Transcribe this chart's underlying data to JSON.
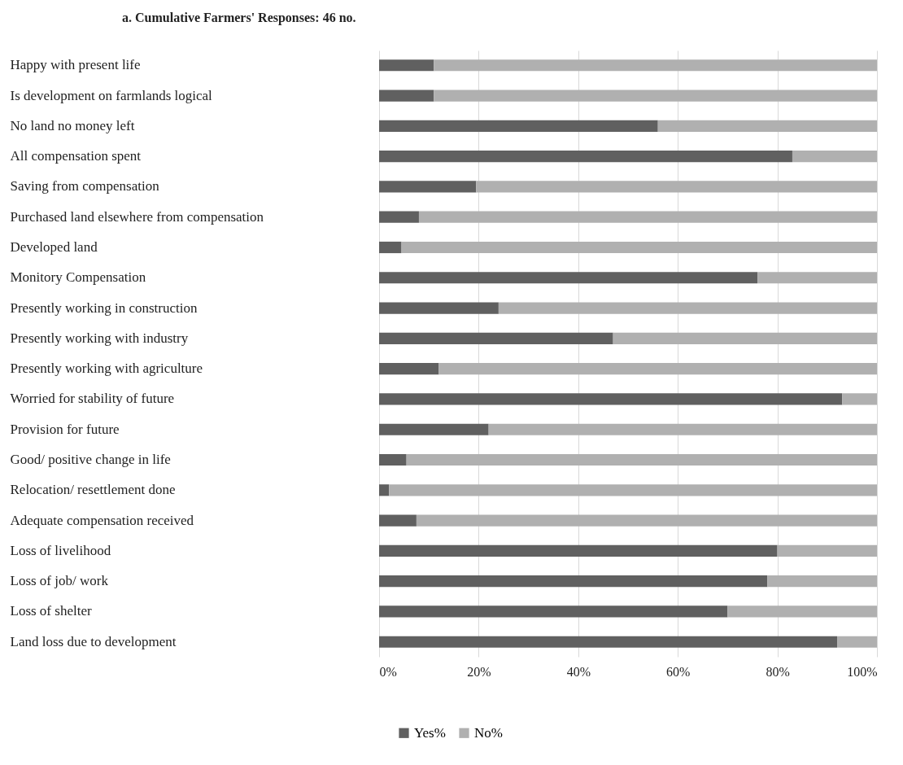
{
  "chart_data": {
    "type": "bar",
    "orientation": "horizontal",
    "stacked": true,
    "title": "a. Cumulative Farmers' Responses: 46 no.",
    "categories": [
      "Happy with present life",
      "Is development on farmlands logical",
      "No land no money left",
      "All compensation spent",
      "Saving from compensation",
      "Purchased land elsewhere from compensation",
      "Developed land",
      "Monitory Compensation",
      "Presently working in construction",
      "Presently working with industry",
      "Presently working with agriculture",
      "Worried for stability of future",
      "Provision for future",
      "Good/ positive change in life",
      "Relocation/ resettlement done",
      "Adequate compensation received",
      "Loss of livelihood",
      "Loss of job/ work",
      "Loss of shelter",
      "Land loss due to development"
    ],
    "series": [
      {
        "name": "Yes%",
        "color": "#606060",
        "values": [
          11,
          11,
          56,
          83,
          19.5,
          8,
          4.5,
          76,
          24,
          47,
          12,
          93,
          22,
          5.5,
          2,
          7.5,
          80,
          78,
          70,
          92
        ]
      },
      {
        "name": "No%",
        "color": "#b0b0b0",
        "values": [
          89,
          89,
          44,
          17,
          80.5,
          92,
          95.5,
          24,
          76,
          53,
          88,
          7,
          78,
          94.5,
          98,
          92.5,
          20,
          22,
          30,
          8
        ]
      }
    ],
    "xlim": [
      0,
      100
    ],
    "xticks": [
      {
        "value": 0,
        "label": "0%"
      },
      {
        "value": 20,
        "label": "20%"
      },
      {
        "value": 40,
        "label": "40%"
      },
      {
        "value": 60,
        "label": "60%"
      },
      {
        "value": 80,
        "label": "80%"
      },
      {
        "value": 100,
        "label": "100%"
      }
    ],
    "grid": "x",
    "legend": "bottom"
  }
}
